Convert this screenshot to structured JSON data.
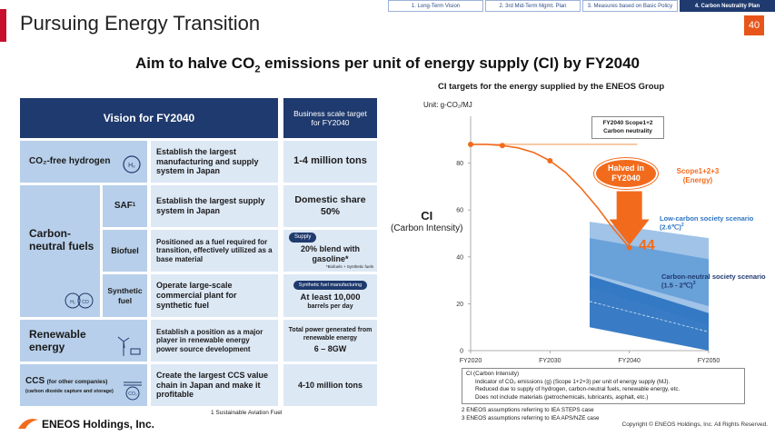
{
  "header": {
    "title": "Pursuing Energy Transition",
    "page_number": "40",
    "tabs": [
      {
        "label": "1. Long-Term Vision",
        "active": false
      },
      {
        "label": "2. 3rd Mid-Term Mgmt. Plan",
        "active": false
      },
      {
        "label": "3. Measures based on Basic Policy",
        "active": false
      },
      {
        "label": "4. Carbon Neutrality Plan",
        "active": true
      }
    ]
  },
  "headline": {
    "pre": "Aim to halve CO",
    "sub": "2",
    "post": " emissions per unit of energy supply (CI) by FY2040"
  },
  "table": {
    "vision_header": "Vision  for FY2040",
    "target_header": "Business scale target for FY2040",
    "h2_label": "CO₂-free hydrogen",
    "h2_desc": "Establish the largest manufacturing and supply system in Japan",
    "h2_target": "1-4 million tons",
    "cn_label": "Carbon-neutral fuels",
    "saf_label": "SAF",
    "saf_sup": "1",
    "saf_desc": "Establish the largest supply system in Japan",
    "saf_target": "Domestic share 50%",
    "bio_label": "Biofuel",
    "bio_desc": "Positioned as a fuel required for transition, effectively utilized as a base material",
    "bio_pill": "Supply",
    "bio_target": "20% blend with gasoline*",
    "bio_small": "*Biofuels + Synthetic fuels",
    "syn_label": "Synthetic fuel",
    "syn_desc": "Operate large-scale commercial plant for synthetic fuel",
    "syn_pill": "Synthetic fuel manufacturing",
    "syn_target": "At least 10,000",
    "syn_target_unit": "barrels per day",
    "re_label": "Renewable energy",
    "re_desc": "Establish a position as a major player in renewable energy power source development",
    "re_target_text": "Total power generated from renewable energy",
    "re_target": "6 – 8GW",
    "ccs_label": "CCS",
    "ccs_sub1": "(for other companies)",
    "ccs_sub2": "(carbon dioxide capture and storage)",
    "ccs_desc": "Create the largest CCS value chain in Japan and make it profitable",
    "ccs_target": "4-10 million tons"
  },
  "footnote": "1  Sustainable Aviation Fuel",
  "logo": "ENEOS Holdings, Inc.",
  "chart": {
    "title": "CI targets for the energy supplied by the ENEOS Group",
    "unit": "Unit: g-CO₂/MJ",
    "ci_label": "CI",
    "ci_sub": "(Carbon Intensity)",
    "callout_neutral": "FY2040 Scope1+2 Carbon neutrality",
    "callout_halved": "Halved in FY2040",
    "scope_label": "Scope1+2+3 (Energy)",
    "low_carbon_label": "Low-carbon society scenario (2.6℃)",
    "low_carbon_sup": "2",
    "neutral_label": "Carbon-neutral society scenario (1.5 - 2℃)",
    "neutral_sup": "3",
    "value_2040": "44"
  },
  "chart_data": {
    "type": "line",
    "x": [
      "FY2020",
      "FY2030",
      "FY2040",
      "FY2050"
    ],
    "ylim": [
      0,
      100
    ],
    "yticks": [
      0,
      20,
      40,
      60,
      80
    ],
    "series": [
      {
        "name": "Scope1+2+3 (Energy)",
        "x": [
          2020,
          2022,
          2024,
          2026,
          2028,
          2030,
          2032,
          2034,
          2036,
          2038,
          2040
        ],
        "values": [
          88,
          88,
          87.5,
          86.5,
          84.5,
          81,
          76,
          69,
          61,
          52,
          44
        ]
      }
    ],
    "bands": [
      {
        "name": "Low-carbon society scenario (2.6℃)",
        "x": [
          2035,
          2050
        ],
        "upper": [
          55,
          48
        ],
        "lower": [
          27,
          11
        ]
      },
      {
        "name": "Carbon-neutral society scenario (1.5 - 2℃)",
        "x": [
          2035,
          2050
        ],
        "upper": [
          32,
          16
        ],
        "lower": [
          10,
          0
        ]
      }
    ],
    "reference_line": 88,
    "grid": false
  },
  "notes": {
    "line1": "CI  (Carbon  Intensity)",
    "line2": "Indicator of CO₂ emissions (g) (Scope 1+2+3) per unit of energy supply (MJ).",
    "line3": "Reduced due to supply of hydrogen, carbon-neutral fuels, renewable energy, etc.",
    "line4": "Does not include materials (petrochemicals, lubricants, asphalt, etc.)",
    "note2": "2 ENEOS  assumptions referring to IEA  STEPS  case",
    "note3": "3 ENEOS  assumptions referring to IEA  APS/NZE  case"
  },
  "copyright": "Copyright © ENEOS  Holdings, Inc. All Rights Reserved.",
  "colors": {
    "navy": "#1f3a6e",
    "orange": "#f26b1d",
    "red": "#c8102e",
    "blue_band": "#2e75c2"
  }
}
